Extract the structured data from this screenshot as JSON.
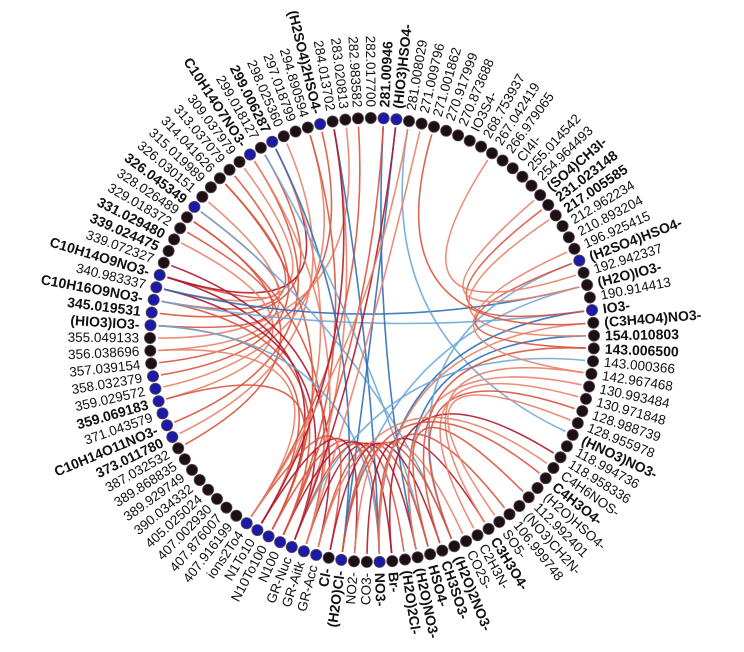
{
  "diagram": {
    "type": "chord",
    "node_colors": {
      "default": "#1c0f16",
      "highlight": "#1a1aa6",
      "outline": "#5b4a52"
    },
    "link_colors": {
      "light_red": "#e8826a",
      "mid_red": "#d9553f",
      "dark_red": "#b0192b",
      "light_blue": "#6fa8d6",
      "dark_blue": "#2f6fb8"
    },
    "nodes": [
      {
        "label": "281.00946",
        "bold": true,
        "color": "highlight"
      },
      {
        "label": "(HIO3)HSO4-",
        "bold": true,
        "color": "highlight"
      },
      {
        "label": "281.008029",
        "bold": false,
        "color": "default"
      },
      {
        "label": "271.009796",
        "bold": false,
        "color": "default"
      },
      {
        "label": "271.001862",
        "bold": false,
        "color": "default"
      },
      {
        "label": "270.917999",
        "bold": false,
        "color": "default"
      },
      {
        "label": "270.873688",
        "bold": false,
        "color": "default"
      },
      {
        "label": "IO3S4-",
        "bold": false,
        "color": "default"
      },
      {
        "label": "268.753937",
        "bold": false,
        "color": "default"
      },
      {
        "label": "267.042419",
        "bold": false,
        "color": "default"
      },
      {
        "label": "266.979065",
        "bold": false,
        "color": "default"
      },
      {
        "label": "CI4I-",
        "bold": false,
        "color": "default"
      },
      {
        "label": "255.014542",
        "bold": false,
        "color": "default"
      },
      {
        "label": "254.964493",
        "bold": false,
        "color": "default"
      },
      {
        "label": "(SO4)CH3I-",
        "bold": true,
        "color": "default"
      },
      {
        "label": "231.023148",
        "bold": true,
        "color": "default"
      },
      {
        "label": "217.005585",
        "bold": true,
        "color": "default"
      },
      {
        "label": "212.962234",
        "bold": false,
        "color": "default"
      },
      {
        "label": "210.893204",
        "bold": false,
        "color": "default"
      },
      {
        "label": "196.925415",
        "bold": false,
        "color": "default"
      },
      {
        "label": "(H2SO4)HSO4-",
        "bold": true,
        "color": "highlight"
      },
      {
        "label": "192.942337",
        "bold": false,
        "color": "default"
      },
      {
        "label": "(H2O)IO3-",
        "bold": true,
        "color": "default"
      },
      {
        "label": "190.914413",
        "bold": false,
        "color": "default"
      },
      {
        "label": "IO3-",
        "bold": true,
        "color": "highlight"
      },
      {
        "label": "(C3H4O4)NO3-",
        "bold": true,
        "color": "default"
      },
      {
        "label": "154.010803",
        "bold": true,
        "color": "default"
      },
      {
        "label": "143.006500",
        "bold": true,
        "color": "default"
      },
      {
        "label": "143.000366",
        "bold": false,
        "color": "default"
      },
      {
        "label": "142.967468",
        "bold": false,
        "color": "default"
      },
      {
        "label": "130.993484",
        "bold": false,
        "color": "default"
      },
      {
        "label": "130.971848",
        "bold": false,
        "color": "default"
      },
      {
        "label": "128.988739",
        "bold": false,
        "color": "default"
      },
      {
        "label": "128.955978",
        "bold": false,
        "color": "default"
      },
      {
        "label": "(HNO3)NO3-",
        "bold": true,
        "color": "default"
      },
      {
        "label": "118.994736",
        "bold": false,
        "color": "default"
      },
      {
        "label": "118.958336",
        "bold": false,
        "color": "default"
      },
      {
        "label": "C4H6NOS-",
        "bold": false,
        "color": "default"
      },
      {
        "label": "C4H3O4-",
        "bold": true,
        "color": "default"
      },
      {
        "label": "(H2O)HSO4-",
        "bold": false,
        "color": "default"
      },
      {
        "label": "112.992401",
        "bold": false,
        "color": "default"
      },
      {
        "label": "(NO3)CH2N-",
        "bold": false,
        "color": "default"
      },
      {
        "label": "106.999748",
        "bold": false,
        "color": "default"
      },
      {
        "label": "SO5-",
        "bold": false,
        "color": "default"
      },
      {
        "label": "C3H3O4-",
        "bold": true,
        "color": "default"
      },
      {
        "label": "C2H3N-",
        "bold": false,
        "color": "default"
      },
      {
        "label": "CO2S-",
        "bold": false,
        "color": "default"
      },
      {
        "label": "(H2O)2NO3-",
        "bold": true,
        "color": "default"
      },
      {
        "label": "CH3SO3-",
        "bold": true,
        "color": "default"
      },
      {
        "label": "HSO4-",
        "bold": true,
        "color": "default"
      },
      {
        "label": "(H2O)NO3-",
        "bold": true,
        "color": "default"
      },
      {
        "label": "(H2O)2Cl-",
        "bold": true,
        "color": "default"
      },
      {
        "label": "Br-",
        "bold": true,
        "color": "default"
      },
      {
        "label": "NO3-",
        "bold": true,
        "color": "highlight"
      },
      {
        "label": "CO3-",
        "bold": false,
        "color": "default"
      },
      {
        "label": "NO2-",
        "bold": false,
        "color": "default"
      },
      {
        "label": "(H2O)Cl-",
        "bold": true,
        "color": "highlight"
      },
      {
        "label": "Cl-",
        "bold": true,
        "color": "default"
      },
      {
        "label": "GR-Acc",
        "bold": false,
        "color": "highlight"
      },
      {
        "label": "GR-Aitk",
        "bold": false,
        "color": "highlight"
      },
      {
        "label": "GR-Nuc",
        "bold": false,
        "color": "highlight"
      },
      {
        "label": "N100",
        "bold": false,
        "color": "highlight"
      },
      {
        "label": "N10To100",
        "bold": false,
        "color": "highlight"
      },
      {
        "label": "N1To10",
        "bold": false,
        "color": "highlight"
      },
      {
        "label": "ions2To4",
        "bold": false,
        "color": "highlight"
      },
      {
        "label": "407.916199",
        "bold": false,
        "color": "default"
      },
      {
        "label": "407.876007",
        "bold": false,
        "color": "default"
      },
      {
        "label": "407.002930",
        "bold": false,
        "color": "default"
      },
      {
        "label": "405.025024",
        "bold": false,
        "color": "default"
      },
      {
        "label": "390.034332",
        "bold": false,
        "color": "default"
      },
      {
        "label": "389.929749",
        "bold": false,
        "color": "default"
      },
      {
        "label": "389.868835",
        "bold": false,
        "color": "default"
      },
      {
        "label": "387.032532",
        "bold": false,
        "color": "default"
      },
      {
        "label": "373.011780",
        "bold": true,
        "color": "highlight"
      },
      {
        "label": "C10H14O11NO3-",
        "bold": true,
        "color": "highlight"
      },
      {
        "label": "371.043579",
        "bold": false,
        "color": "highlight"
      },
      {
        "label": "359.069183",
        "bold": true,
        "color": "highlight"
      },
      {
        "label": "359.029572",
        "bold": false,
        "color": "highlight"
      },
      {
        "label": "358.032379",
        "bold": false,
        "color": "highlight"
      },
      {
        "label": "357.039154",
        "bold": false,
        "color": "default"
      },
      {
        "label": "356.038696",
        "bold": false,
        "color": "default"
      },
      {
        "label": "355.049133",
        "bold": false,
        "color": "default"
      },
      {
        "label": "(HIO3)IO3-",
        "bold": true,
        "color": "highlight"
      },
      {
        "label": "345.019531",
        "bold": true,
        "color": "highlight"
      },
      {
        "label": "C10H16O9NO3-",
        "bold": true,
        "color": "highlight"
      },
      {
        "label": "340.983337",
        "bold": false,
        "color": "highlight"
      },
      {
        "label": "C10H14O9NO3-",
        "bold": true,
        "color": "highlight"
      },
      {
        "label": "339.072327",
        "bold": false,
        "color": "default"
      },
      {
        "label": "339.024475",
        "bold": true,
        "color": "default"
      },
      {
        "label": "331.029480",
        "bold": true,
        "color": "default"
      },
      {
        "label": "329.018372",
        "bold": false,
        "color": "default"
      },
      {
        "label": "328.026489",
        "bold": false,
        "color": "default"
      },
      {
        "label": "326.045349",
        "bold": true,
        "color": "highlight"
      },
      {
        "label": "326.030151",
        "bold": false,
        "color": "default"
      },
      {
        "label": "315.019989",
        "bold": false,
        "color": "default"
      },
      {
        "label": "314.041626",
        "bold": false,
        "color": "default"
      },
      {
        "label": "313.037079",
        "bold": false,
        "color": "default"
      },
      {
        "label": "309.037979",
        "bold": false,
        "color": "default"
      },
      {
        "label": "C10H14O7NO3-",
        "bold": true,
        "color": "highlight"
      },
      {
        "label": "299.018127",
        "bold": false,
        "color": "default"
      },
      {
        "label": "299.006287",
        "bold": true,
        "color": "highlight"
      },
      {
        "label": "298.025360",
        "bold": false,
        "color": "default"
      },
      {
        "label": "297.018799",
        "bold": false,
        "color": "default"
      },
      {
        "label": "294.890594",
        "bold": false,
        "color": "default"
      },
      {
        "label": "(H2SO4)2HSO4-",
        "bold": true,
        "color": "highlight"
      },
      {
        "label": "284.013702",
        "bold": false,
        "color": "default"
      },
      {
        "label": "283.020813",
        "bold": false,
        "color": "default"
      },
      {
        "label": "282.983582",
        "bold": false,
        "color": "default"
      },
      {
        "label": "282.017700",
        "bold": false,
        "color": "default"
      }
    ],
    "links": [
      {
        "s": 86,
        "t": 92,
        "c": "mid_red"
      },
      {
        "s": 84,
        "t": 95,
        "c": "mid_red"
      },
      {
        "s": 85,
        "t": 97,
        "c": "light_red"
      },
      {
        "s": 83,
        "t": 99,
        "c": "mid_red"
      },
      {
        "s": 86,
        "t": 100,
        "c": "dark_red"
      },
      {
        "s": 82,
        "t": 90,
        "c": "mid_red"
      },
      {
        "s": 80,
        "t": 93,
        "c": "light_red"
      },
      {
        "s": 78,
        "t": 96,
        "c": "mid_red"
      },
      {
        "s": 76,
        "t": 89,
        "c": "light_red"
      },
      {
        "s": 74,
        "t": 98,
        "c": "mid_red"
      },
      {
        "s": 73,
        "t": 101,
        "c": "light_red"
      },
      {
        "s": 72,
        "t": 91,
        "c": "mid_red"
      },
      {
        "s": 77,
        "t": 103,
        "c": "light_red"
      },
      {
        "s": 79,
        "t": 104,
        "c": "mid_red"
      },
      {
        "s": 81,
        "t": 106,
        "c": "light_red"
      },
      {
        "s": 85,
        "t": 60,
        "c": "dark_red"
      },
      {
        "s": 84,
        "t": 61,
        "c": "mid_red"
      },
      {
        "s": 86,
        "t": 62,
        "c": "dark_red"
      },
      {
        "s": 82,
        "t": 63,
        "c": "mid_red"
      },
      {
        "s": 80,
        "t": 64,
        "c": "light_red"
      },
      {
        "s": 76,
        "t": 62,
        "c": "mid_red"
      },
      {
        "s": 87,
        "t": 58,
        "c": "dark_red"
      },
      {
        "s": 91,
        "t": 59,
        "c": "mid_red"
      },
      {
        "s": 105,
        "t": 60,
        "c": "light_red"
      },
      {
        "s": 103,
        "t": 61,
        "c": "mid_red"
      },
      {
        "s": 100,
        "t": 63,
        "c": "light_red"
      },
      {
        "s": 107,
        "t": 64,
        "c": "mid_red"
      },
      {
        "s": 98,
        "t": 59,
        "c": "light_red"
      },
      {
        "s": 95,
        "t": 62,
        "c": "mid_red"
      },
      {
        "s": 84,
        "t": 24,
        "c": "light_blue"
      },
      {
        "s": 85,
        "t": 22,
        "c": "dark_blue"
      },
      {
        "s": 82,
        "t": 53,
        "c": "light_blue"
      },
      {
        "s": 100,
        "t": 56,
        "c": "dark_blue"
      },
      {
        "s": 99,
        "t": 49,
        "c": "light_blue"
      },
      {
        "s": 105,
        "t": 53,
        "c": "dark_blue"
      },
      {
        "s": 92,
        "t": 47,
        "c": "light_blue"
      },
      {
        "s": 0,
        "t": 50,
        "c": "dark_blue"
      },
      {
        "s": 1,
        "t": 56,
        "c": "dark_blue"
      },
      {
        "s": 2,
        "t": 34,
        "c": "light_blue"
      },
      {
        "s": 24,
        "t": 53,
        "c": "dark_blue"
      },
      {
        "s": 22,
        "t": 56,
        "c": "light_blue"
      },
      {
        "s": 26,
        "t": 50,
        "c": "dark_blue"
      },
      {
        "s": 20,
        "t": 47,
        "c": "light_blue"
      },
      {
        "s": 28,
        "t": 60,
        "c": "light_blue"
      },
      {
        "s": 58,
        "t": 49,
        "c": "mid_red"
      },
      {
        "s": 59,
        "t": 50,
        "c": "dark_red"
      },
      {
        "s": 60,
        "t": 51,
        "c": "mid_red"
      },
      {
        "s": 61,
        "t": 52,
        "c": "dark_red"
      },
      {
        "s": 62,
        "t": 53,
        "c": "mid_red"
      },
      {
        "s": 63,
        "t": 55,
        "c": "dark_red"
      },
      {
        "s": 64,
        "t": 57,
        "c": "mid_red"
      },
      {
        "s": 57,
        "t": 48,
        "c": "dark_red"
      },
      {
        "s": 56,
        "t": 47,
        "c": "mid_red"
      },
      {
        "s": 55,
        "t": 46,
        "c": "light_red"
      },
      {
        "s": 54,
        "t": 44,
        "c": "dark_red"
      },
      {
        "s": 53,
        "t": 42,
        "c": "mid_red"
      },
      {
        "s": 50,
        "t": 30,
        "c": "light_red"
      },
      {
        "s": 47,
        "t": 32,
        "c": "mid_red"
      },
      {
        "s": 44,
        "t": 29,
        "c": "light_red"
      },
      {
        "s": 48,
        "t": 27,
        "c": "mid_red"
      },
      {
        "s": 52,
        "t": 36,
        "c": "dark_red"
      },
      {
        "s": 45,
        "t": 31,
        "c": "light_red"
      },
      {
        "s": 56,
        "t": 38,
        "c": "mid_red"
      },
      {
        "s": 53,
        "t": 25,
        "c": "light_red"
      },
      {
        "s": 49,
        "t": 40,
        "c": "mid_red"
      },
      {
        "s": 43,
        "t": 33,
        "c": "light_red"
      },
      {
        "s": 58,
        "t": 37,
        "c": "light_red"
      },
      {
        "s": 15,
        "t": 24,
        "c": "mid_red"
      },
      {
        "s": 16,
        "t": 26,
        "c": "light_red"
      },
      {
        "s": 20,
        "t": 27,
        "c": "mid_red"
      },
      {
        "s": 14,
        "t": 22,
        "c": "light_red"
      },
      {
        "s": 9,
        "t": 21,
        "c": "light_red"
      },
      {
        "s": 4,
        "t": 25,
        "c": "mid_red"
      },
      {
        "s": 19,
        "t": 29,
        "c": "light_red"
      },
      {
        "s": 1,
        "t": 60,
        "c": "dark_red"
      },
      {
        "s": 0,
        "t": 61,
        "c": "mid_red"
      },
      {
        "s": 105,
        "t": 63,
        "c": "dark_red"
      },
      {
        "s": 2,
        "t": 64,
        "c": "light_red"
      },
      {
        "s": 3,
        "t": 59,
        "c": "light_red"
      }
    ]
  }
}
